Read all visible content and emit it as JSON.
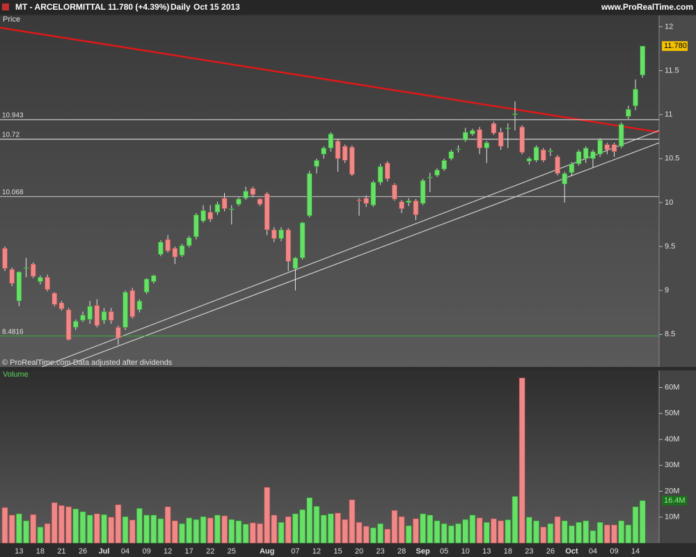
{
  "header": {
    "symbol": "MT - ARCELORMITTAL",
    "quote": "11.780 (+4.39%)",
    "period": "Daily",
    "date": "Oct 15 2013",
    "site": "www.ProRealTime.com"
  },
  "chart_data": [
    {
      "type": "candlestick",
      "label": "Price",
      "note": "© ProRealTime.com  Data adjusted after dividends",
      "up_color": "#66e066",
      "down_color": "#f08888",
      "open": [
        9.48,
        9.24,
        8.88,
        9.25,
        9.3,
        9.1,
        9.15,
        8.97,
        8.86,
        8.78,
        8.58,
        8.66,
        8.67,
        8.83,
        8.66,
        8.76,
        8.58,
        8.58,
        9.0,
        8.78,
        8.98,
        9.1,
        9.41,
        9.58,
        9.48,
        9.4,
        9.51,
        9.61,
        9.79,
        9.89,
        9.89,
        10.05,
        9.92,
        9.98,
        10.05,
        10.16,
        10.04,
        10.1,
        9.69,
        9.59,
        9.69,
        9.25,
        9.37,
        9.85,
        10.41,
        10.55,
        10.62,
        10.7,
        10.64,
        10.63,
        10.03,
        10.05,
        9.97,
        10.23,
        10.45,
        10.2,
        10.01,
        10.0,
        10.02,
        9.99,
        10.28,
        10.31,
        10.38,
        10.5,
        10.61,
        10.71,
        10.78,
        10.83,
        10.62,
        10.9,
        10.8,
        10.84,
        11.0,
        10.86,
        10.47,
        10.48,
        10.6,
        10.58,
        10.52,
        10.21,
        10.34,
        10.44,
        10.5,
        10.5,
        10.55,
        10.66,
        10.66,
        10.64,
        10.98,
        11.1,
        11.45
      ],
      "high": [
        9.5,
        9.26,
        9.22,
        9.37,
        9.32,
        9.17,
        9.18,
        8.98,
        8.88,
        8.8,
        8.67,
        8.76,
        8.88,
        8.9,
        8.8,
        8.8,
        8.6,
        9.0,
        9.03,
        8.9,
        9.14,
        9.18,
        9.57,
        9.63,
        9.5,
        9.53,
        9.62,
        9.88,
        9.97,
        9.97,
        10.01,
        10.11,
        9.97,
        10.06,
        10.18,
        10.18,
        10.05,
        10.12,
        9.72,
        9.72,
        9.71,
        9.38,
        9.78,
        10.36,
        10.5,
        10.64,
        10.8,
        10.72,
        10.66,
        10.65,
        10.05,
        10.08,
        10.25,
        10.44,
        10.47,
        10.22,
        10.03,
        10.05,
        10.04,
        10.27,
        10.34,
        10.39,
        10.5,
        10.6,
        10.65,
        10.85,
        10.84,
        10.86,
        10.7,
        10.92,
        10.85,
        10.9,
        11.15,
        10.88,
        10.52,
        10.65,
        10.62,
        10.62,
        10.54,
        10.35,
        10.46,
        10.6,
        10.64,
        10.6,
        10.73,
        10.68,
        10.68,
        10.91,
        11.1,
        11.4,
        11.78
      ],
      "low": [
        9.22,
        9.05,
        8.82,
        9.15,
        9.14,
        9.07,
        8.99,
        8.82,
        8.77,
        8.43,
        8.55,
        8.64,
        8.62,
        8.58,
        8.62,
        8.62,
        8.38,
        8.55,
        8.68,
        8.75,
        8.96,
        9.08,
        9.39,
        9.43,
        9.3,
        9.38,
        9.49,
        9.58,
        9.77,
        9.78,
        9.86,
        9.9,
        9.75,
        9.96,
        10.03,
        10.06,
        9.96,
        9.63,
        9.55,
        9.56,
        9.22,
        9.0,
        9.35,
        9.83,
        10.33,
        10.5,
        10.58,
        10.35,
        10.45,
        10.3,
        9.85,
        9.95,
        9.95,
        10.2,
        10.24,
        10.02,
        9.88,
        9.96,
        9.8,
        9.97,
        10.12,
        10.29,
        10.36,
        10.48,
        10.57,
        10.69,
        10.76,
        10.55,
        10.45,
        10.77,
        10.6,
        10.62,
        10.82,
        10.55,
        10.43,
        10.46,
        10.46,
        10.53,
        10.31,
        10.0,
        10.3,
        10.42,
        10.45,
        10.4,
        10.52,
        10.55,
        10.52,
        10.62,
        10.95,
        11.05,
        11.42
      ],
      "close": [
        9.25,
        9.08,
        9.21,
        9.26,
        9.16,
        9.15,
        9.01,
        8.84,
        8.79,
        8.44,
        8.65,
        8.72,
        8.82,
        8.6,
        8.76,
        8.66,
        8.46,
        8.98,
        8.7,
        8.88,
        9.13,
        9.17,
        9.55,
        9.45,
        9.38,
        9.51,
        9.6,
        9.86,
        9.91,
        9.81,
        9.98,
        9.93,
        9.93,
        10.04,
        10.13,
        10.09,
        9.98,
        9.69,
        9.59,
        9.69,
        9.33,
        9.37,
        9.77,
        10.33,
        10.48,
        10.62,
        10.78,
        10.5,
        10.48,
        10.32,
        10.02,
        9.99,
        10.23,
        10.41,
        10.27,
        10.04,
        9.93,
        10.02,
        9.86,
        10.25,
        10.29,
        10.37,
        10.48,
        10.58,
        10.61,
        10.8,
        10.82,
        10.62,
        10.68,
        10.79,
        10.64,
        10.85,
        11.01,
        10.57,
        10.5,
        10.63,
        10.48,
        10.59,
        10.33,
        10.33,
        10.44,
        10.58,
        10.62,
        10.58,
        10.71,
        10.6,
        10.58,
        10.89,
        11.06,
        11.29,
        11.78
      ],
      "ylim": [
        8.13,
        12.13
      ],
      "yticks": [
        8.5,
        9,
        9.5,
        10,
        10.5,
        11,
        11.5,
        12
      ],
      "hlines": [
        {
          "value": 10.943,
          "color": "#e8e8e8"
        },
        {
          "value": 10.72,
          "color": "#ffffff"
        },
        {
          "value": 10.068,
          "color": "#c8c8c8"
        },
        {
          "value": 8.4816,
          "color": "#3cb43c"
        }
      ],
      "trendlines": [
        {
          "color": "#e01818",
          "x": [
            -0.69,
            92.34
          ],
          "y": [
            11.99,
            10.8
          ]
        },
        {
          "color": "#d0d0d0",
          "x": [
            5.21,
            92.34
          ],
          "y": [
            8.13,
            10.82
          ]
        },
        {
          "color": "#d0d0d0",
          "x": [
            8.15,
            92.34
          ],
          "y": [
            8.13,
            10.68
          ]
        }
      ],
      "last_price": {
        "value": 11.78,
        "label": "11.780"
      }
    },
    {
      "type": "bar",
      "label": "Volume",
      "categories": [
        null,
        null,
        "13",
        null,
        null,
        "18",
        null,
        null,
        "21",
        null,
        null,
        "26",
        null,
        null,
        "Jul",
        null,
        null,
        "04",
        null,
        null,
        "09",
        null,
        null,
        "12",
        null,
        null,
        "17",
        null,
        null,
        "22",
        null,
        null,
        "25",
        null,
        null,
        null,
        null,
        "Aug",
        null,
        null,
        null,
        "07",
        null,
        null,
        "12",
        null,
        null,
        "15",
        null,
        null,
        "20",
        null,
        null,
        "23",
        null,
        null,
        "28",
        null,
        null,
        "Sep",
        null,
        null,
        "05",
        null,
        null,
        "10",
        null,
        null,
        "13",
        null,
        null,
        "18",
        null,
        null,
        "23",
        null,
        null,
        "26",
        null,
        null,
        "Oct",
        null,
        null,
        "04",
        null,
        null,
        "09",
        null,
        null,
        "14",
        null
      ],
      "values": [
        13.7,
        10.8,
        11.3,
        8.6,
        11,
        6.2,
        7.5,
        15.6,
        14.5,
        14,
        13.2,
        12.1,
        10.8,
        11.3,
        11,
        10,
        14.8,
        10.2,
        8.9,
        13.4,
        10.8,
        10.8,
        9.4,
        14,
        8.6,
        7.5,
        9.7,
        9.1,
        10.2,
        9.7,
        10.8,
        10.5,
        9.1,
        8.6,
        7.3,
        7.8,
        7.5,
        21.5,
        10.8,
        8,
        10.2,
        11.3,
        12.9,
        17.5,
        14.2,
        10.8,
        11.3,
        11.6,
        9.1,
        16.7,
        8,
        6.5,
        5.9,
        7.5,
        5.4,
        12.6,
        10.2,
        6.7,
        9.4,
        11.3,
        10.8,
        8.6,
        7.5,
        6.7,
        7.5,
        9.1,
        10.8,
        9.7,
        8,
        9.4,
        8.6,
        9,
        18,
        63.7,
        10,
        8.6,
        6.2,
        7.5,
        10.2,
        8.6,
        6.7,
        8,
        8.6,
        4.8,
        8,
        7,
        7,
        8.6,
        7,
        14,
        16.4
      ],
      "ylim": [
        0,
        66.6
      ],
      "yticks": [
        {
          "value": 10,
          "label": "10M"
        },
        {
          "value": 20,
          "label": "20M"
        },
        {
          "value": 30,
          "label": "30M"
        },
        {
          "value": 40,
          "label": "40M"
        },
        {
          "value": 50,
          "label": "50M"
        },
        {
          "value": 60,
          "label": "60M"
        }
      ],
      "last_value": {
        "value": 16.4,
        "label": "16.4M"
      }
    }
  ]
}
